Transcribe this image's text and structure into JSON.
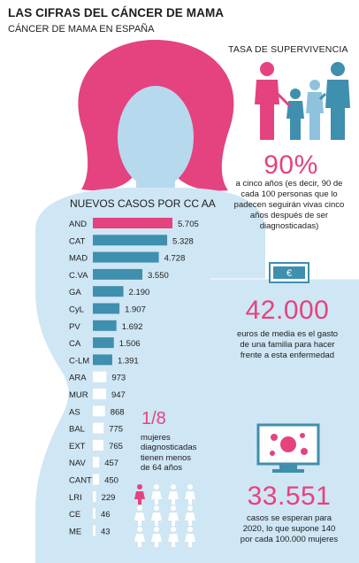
{
  "header": {
    "title": "LAS CIFRAS DEL CÁNCER  DE MAMA",
    "subtitle": "CÁNCER DE MAMA EN ESPAÑA"
  },
  "colors": {
    "pink": "#e4437f",
    "bar_blue": "#3f8fae",
    "body_light": "#cfe6f4",
    "body_mid": "#b7d9ee",
    "white": "#ffffff"
  },
  "chart_data": {
    "type": "bar",
    "orientation": "horizontal",
    "title": "NUEVOS CASOS POR CC AA",
    "categories": [
      "AND",
      "CAT",
      "MAD",
      "C.VA",
      "GA",
      "CyL",
      "PV",
      "CA",
      "C-LM",
      "ARA",
      "MUR",
      "AS",
      "BAL",
      "EXT",
      "NAV",
      "CANT",
      "LRI",
      "CE",
      "ME"
    ],
    "values": [
      5705,
      5328,
      4728,
      3550,
      2190,
      1907,
      1692,
      1506,
      1391,
      973,
      947,
      868,
      775,
      765,
      457,
      450,
      229,
      46,
      43
    ],
    "value_labels": [
      "5.705",
      "5.328",
      "4.728",
      "3.550",
      "2.190",
      "1.907",
      "1.692",
      "1.506",
      "1.391",
      "973",
      "947",
      "868",
      "775",
      "765",
      "457",
      "450",
      "229",
      "46",
      "43"
    ],
    "highlight_index": 0
  },
  "survival": {
    "title": "TASA DE SUPERVIVENCIA",
    "value": "90%",
    "description": "a cinco años (es decir, 90 de cada 100 personas que lo padecen seguirán vivas cinco años después de ser diagnosticadas)",
    "icon": "family-icon"
  },
  "cost": {
    "value": "42.000",
    "description": "euros de media es el gasto de una familia para hacer frente a esta enfermedad",
    "icon": "euro-banknote-icon"
  },
  "cases2020": {
    "value": "33.551",
    "description": "casos se esperan para 2020, lo que supone 140 por cada 100.000 mujeres",
    "icon": "monitor-cells-icon"
  },
  "under64": {
    "fraction": "1/8",
    "description": "mujeres diagnosticadas tienen menos de 64 años",
    "icon": "women-pictogram-icon",
    "highlighted_share": 0.125
  }
}
